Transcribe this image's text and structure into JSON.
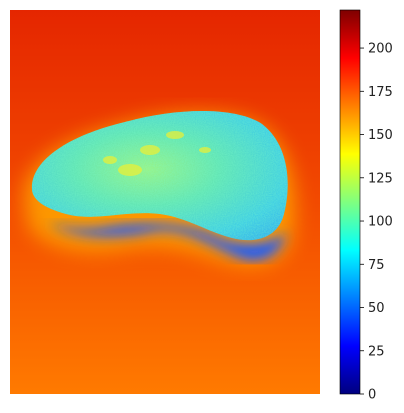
{
  "chart_data": {
    "type": "heatmap",
    "title": "",
    "xlabel": "",
    "ylabel": "",
    "axes_visible": false,
    "colormap": "jet",
    "colorbar": {
      "range": [
        0,
        222
      ],
      "ticks": [
        0,
        25,
        50,
        75,
        100,
        125,
        150,
        175,
        200
      ],
      "tick_labels": [
        "0",
        "25",
        "50",
        "75",
        "100",
        "125",
        "150",
        "175",
        "200"
      ]
    },
    "image_content": {
      "subject": "kidney-shaped object on a flat surface",
      "background_values": {
        "top": 205,
        "bottom": 180
      },
      "object_values": {
        "typical": 95,
        "range": [
          75,
          155
        ]
      },
      "shadow_values": {
        "range": [
          35,
          80
        ]
      }
    }
  }
}
